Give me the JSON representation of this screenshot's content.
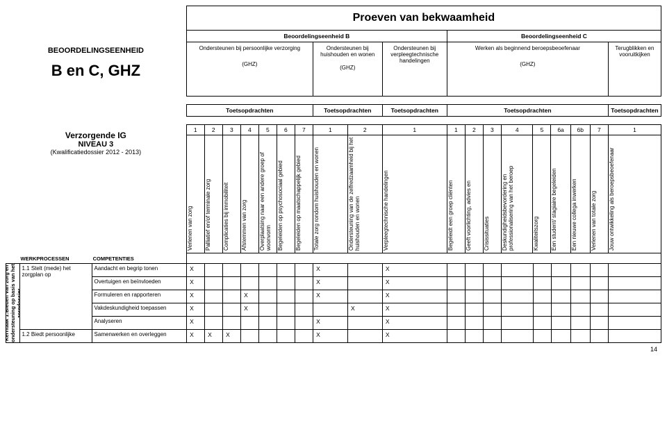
{
  "header": {
    "title": "Proeven van bekwaamheid",
    "eenheidB": "Beoordelingseenheid B",
    "eenheidC": "Beoordelingseenheid C",
    "left_line1": "BEOORDELINGSEENHEID",
    "left_line2": "B en C, GHZ",
    "cols": {
      "b1": "Ondersteunen bij persoonlijke verzorging",
      "b1_sub": "(GHZ)",
      "b2": "Ondersteunen bij huishouden en wonen",
      "b2_sub": "(GHZ)",
      "b3": "Ondersteunen bij verpleegtechnische handelingen",
      "c1": "Werken als beginnend beroepsbeoefenaar",
      "c1_sub": "(GHZ)",
      "c2": "Terugblikken en vooruitkijken"
    },
    "toets": {
      "t1": "Toetsopdrachten",
      "t2": "Toetsopdrachten",
      "t3": "Toetsopdrachten",
      "t4": "Toetsopdrachten",
      "t5": "Toetsopdrachten"
    }
  },
  "qualification": {
    "t1": "Verzorgende IG",
    "t2": "NIVEAU 3",
    "t3": "(Kwalificatiedossier 2012 - 2013)"
  },
  "subheaders": {
    "werk": "WERKPROCESSEN",
    "comp": "COMPETENTIES"
  },
  "nums": [
    "1",
    "2",
    "3",
    "4",
    "5",
    "6",
    "7",
    "1",
    "2",
    "1",
    "1",
    "2",
    "3",
    "4",
    "5",
    "6a",
    "6b",
    "7",
    "1"
  ],
  "vcols": [
    "Verlenen van zorg",
    "Palliatief en/of terminale zorg",
    "Complicaties bij immobiliteit",
    "Afstemmen van zorg",
    "Overplaatsing naar een andere groep of woonvorm",
    "Begeleiden op psychosociaal gebied",
    "Begeleiden op maatschappelijk gebied",
    "Totale zorg rondom huishouden en wonen",
    "Ondersteuning van de zelfredzaamheid bij het huishouden en wonen",
    "Verpleegtechnische handelingen",
    "Begeleidt een groep cliënten",
    "Geeft voorlichting, advies en",
    "Crisissituaties",
    "Deskundigheidsbevordering en professionalisering van het beroep",
    "Kwaliteitszorg",
    "Een student/ stagiaire begeleiden",
    "Een nieuwe collega inwerken",
    "Verlenen van totale zorg",
    "Jouw ontwikkeling als beroepsbeoefenaar"
  ],
  "kerntaak": "Kerntaak 1:Bieden van zorg en ondersteuning op basis van het zorgdossier",
  "rows": [
    {
      "proc": "1.1 Stelt (mede) het zorgplan op",
      "comp": "Aandacht en begrip tonen",
      "x": [
        1,
        0,
        0,
        0,
        0,
        0,
        0,
        1,
        0,
        1,
        0,
        0,
        0,
        0,
        0,
        0,
        0,
        0,
        0
      ]
    },
    {
      "proc": "",
      "comp": "Overtuigen en beïnvloeden",
      "x": [
        1,
        0,
        0,
        0,
        0,
        0,
        0,
        1,
        0,
        1,
        0,
        0,
        0,
        0,
        0,
        0,
        0,
        0,
        0
      ]
    },
    {
      "proc": "",
      "comp": "Formuleren en rapporteren",
      "x": [
        1,
        0,
        0,
        1,
        0,
        0,
        0,
        1,
        0,
        1,
        0,
        0,
        0,
        0,
        0,
        0,
        0,
        0,
        0
      ]
    },
    {
      "proc": "",
      "comp": "Vakdeskundigheid toepassen",
      "x": [
        1,
        0,
        0,
        1,
        0,
        0,
        0,
        0,
        1,
        1,
        0,
        0,
        0,
        0,
        0,
        0,
        0,
        0,
        0
      ]
    },
    {
      "proc": "",
      "comp": "Analyseren",
      "x": [
        1,
        0,
        0,
        0,
        0,
        0,
        0,
        1,
        0,
        1,
        0,
        0,
        0,
        0,
        0,
        0,
        0,
        0,
        0
      ]
    },
    {
      "proc": "1.2 Biedt persoonlijke",
      "comp": "Samenwerken en overleggen",
      "x": [
        1,
        1,
        1,
        0,
        0,
        0,
        0,
        1,
        0,
        1,
        0,
        0,
        0,
        0,
        0,
        0,
        0,
        0,
        0
      ]
    }
  ],
  "pagenum": "14"
}
